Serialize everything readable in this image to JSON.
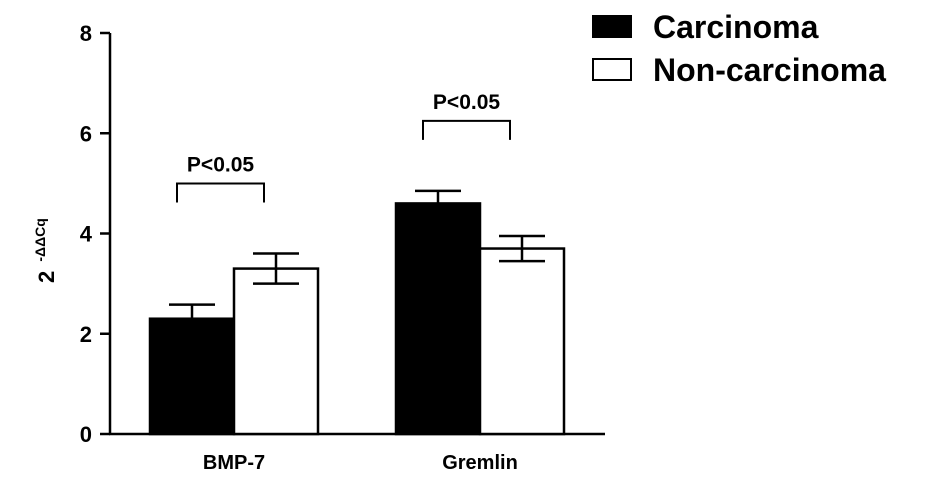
{
  "chart_data": {
    "type": "bar",
    "categories": [
      "BMP-7",
      "Gremlin"
    ],
    "series": [
      {
        "name": "Carcinoma",
        "values": [
          2.3,
          4.6
        ],
        "errors": [
          0.28,
          0.25
        ],
        "color": "#000000"
      },
      {
        "name": "Non-carcinoma",
        "values": [
          3.3,
          3.7
        ],
        "errors": [
          0.3,
          0.25
        ],
        "color": "#ffffff"
      }
    ],
    "ylabel_base": "2",
    "ylabel_sup": "-ΔΔCq",
    "xlabel": "",
    "ylim": [
      0,
      8
    ],
    "yticks": [
      "0",
      "2",
      "4",
      "6",
      "8"
    ],
    "yticks_values": [
      0,
      2,
      4,
      6,
      8
    ],
    "annotations": [
      {
        "category": "BMP-7",
        "text": "P<0.05"
      },
      {
        "category": "Gremlin",
        "text": "P<0.05"
      }
    ],
    "legend_position": "top-right",
    "grid": false
  }
}
